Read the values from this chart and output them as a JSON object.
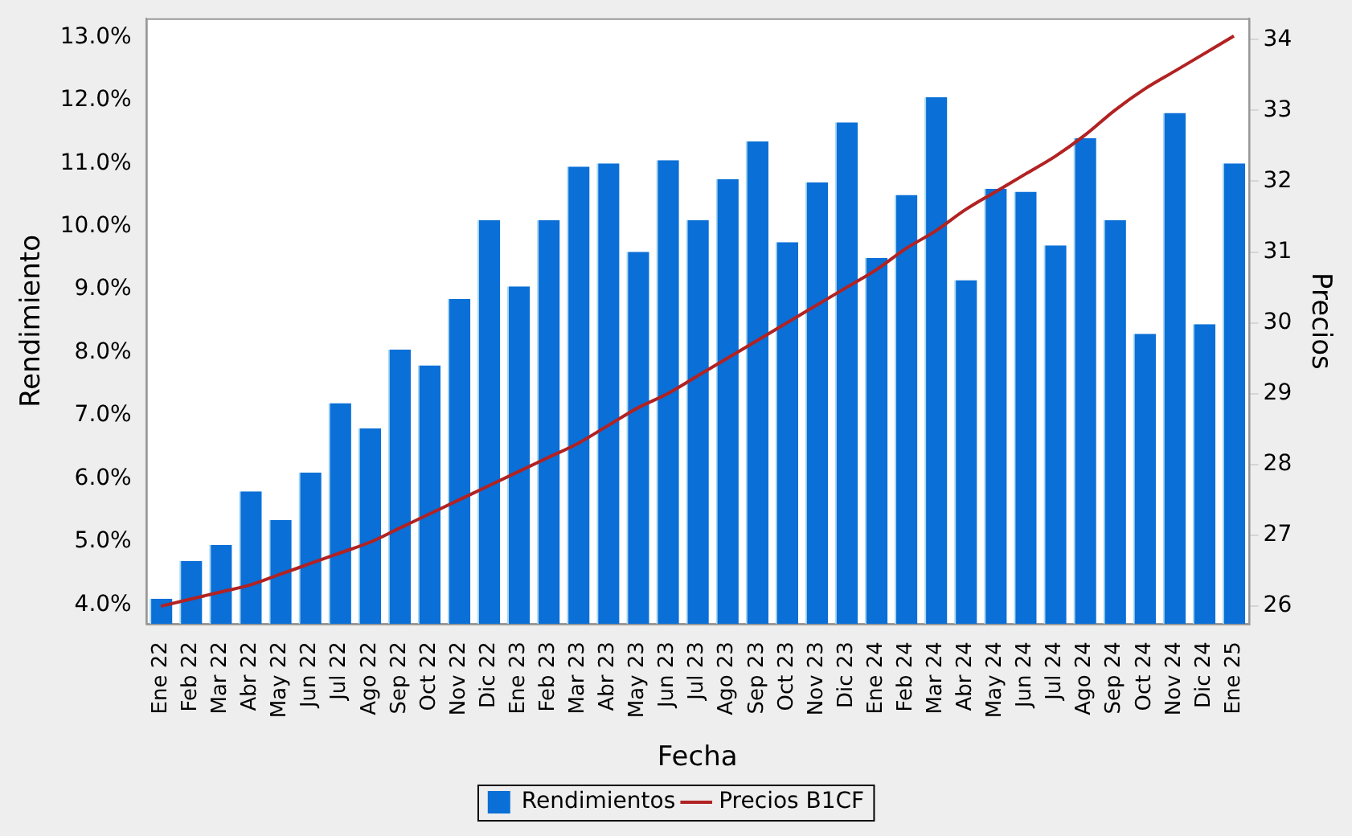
{
  "chart_data": {
    "type": "bar",
    "xlabel": "Fecha",
    "ylabel": "Rendimiento",
    "y2label": "Precios",
    "categories": [
      "Ene 22",
      "Feb 22",
      "Mar 22",
      "Abr 22",
      "May 22",
      "Jun 22",
      "Jul 22",
      "Ago 22",
      "Sep 22",
      "Oct 22",
      "Nov 22",
      "Dic 22",
      "Ene 23",
      "Feb 23",
      "Mar 23",
      "Abr 23",
      "May 23",
      "Jun 23",
      "Jul 23",
      "Ago 23",
      "Sep 23",
      "Oct 23",
      "Nov 23",
      "Dic 23",
      "Ene 24",
      "Feb 24",
      "Mar 24",
      "Abr 24",
      "May 24",
      "Jun 24",
      "Jul 24",
      "Ago 24",
      "Sep 24",
      "Oct 24",
      "Nov 24",
      "Dic 24",
      "Ene 25"
    ],
    "series": [
      {
        "name": "Rendimientos",
        "color": "#0a6fd6",
        "values": [
          4.1,
          4.7,
          4.95,
          5.8,
          5.35,
          6.1,
          7.2,
          6.8,
          8.05,
          7.8,
          8.85,
          10.1,
          9.05,
          10.1,
          10.95,
          11.0,
          9.6,
          11.05,
          10.1,
          10.75,
          11.35,
          9.75,
          10.7,
          11.65,
          9.5,
          10.5,
          12.05,
          9.15,
          10.6,
          10.55,
          9.7,
          11.4,
          10.1,
          8.3,
          11.8,
          8.45,
          11.0
        ]
      },
      {
        "name": "Precios B1CF",
        "type": "line",
        "axis": "y2",
        "color": "#b22222",
        "values": [
          26.0,
          26.1,
          26.2,
          26.3,
          26.45,
          26.6,
          26.75,
          26.9,
          27.1,
          27.3,
          27.5,
          27.7,
          27.9,
          28.1,
          28.3,
          28.55,
          28.8,
          29.0,
          29.25,
          29.5,
          29.75,
          30.0,
          30.25,
          30.5,
          30.75,
          31.05,
          31.3,
          31.6,
          31.85,
          32.1,
          32.35,
          32.65,
          33.0,
          33.3,
          33.55,
          33.8,
          34.05
        ]
      }
    ],
    "ylim": [
      3.7,
      13.3
    ],
    "yticks": [
      {
        "value": 4,
        "label": "4.0%"
      },
      {
        "value": 5,
        "label": "5.0%"
      },
      {
        "value": 6,
        "label": "6.0%"
      },
      {
        "value": 7,
        "label": "7.0%"
      },
      {
        "value": 8,
        "label": "8.0%"
      },
      {
        "value": 9,
        "label": "9.0%"
      },
      {
        "value": 10,
        "label": "10.0%"
      },
      {
        "value": 11,
        "label": "11.0%"
      },
      {
        "value": 12,
        "label": "12.0%"
      },
      {
        "value": 13,
        "label": "13.0%"
      }
    ],
    "y2lim": [
      25.75,
      34.3
    ],
    "y2ticks": [
      26,
      27,
      28,
      29,
      30,
      31,
      32,
      33,
      34
    ],
    "grid": false,
    "legend": "bottom",
    "marker": "none",
    "line_style": "solid"
  }
}
